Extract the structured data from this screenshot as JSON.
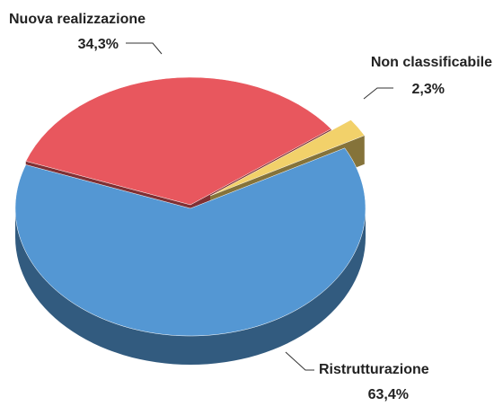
{
  "chart_data": {
    "type": "pie",
    "categories": [
      "Nuova realizzazione",
      "Non classificabile",
      "Ristrutturazione"
    ],
    "values": [
      34.3,
      2.3,
      63.4
    ],
    "value_labels": [
      "34,3%",
      "2,3%",
      "63,4%"
    ],
    "colors": [
      "#e8575e",
      "#f2d16a",
      "#5497d3"
    ]
  }
}
